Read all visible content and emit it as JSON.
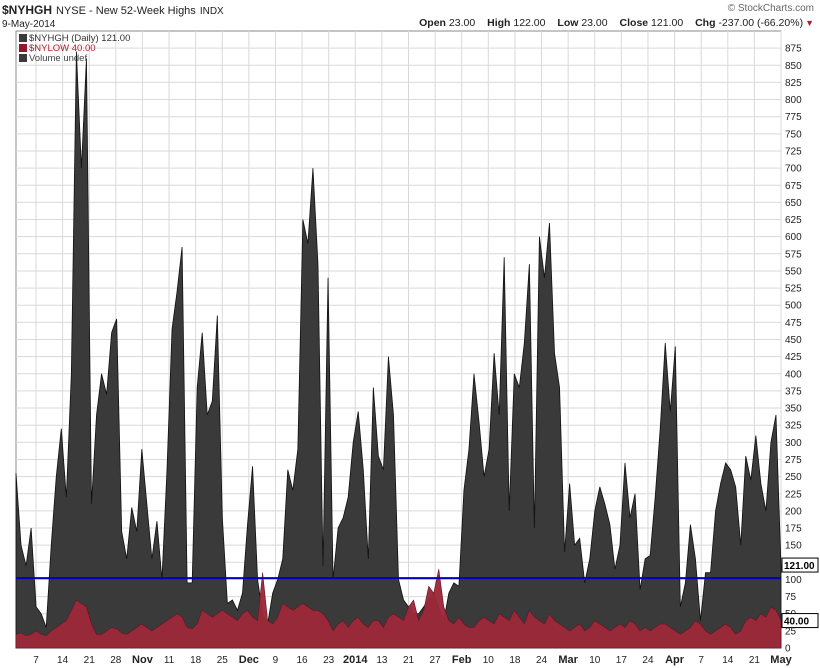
{
  "header": {
    "symbol": "$NYHGH",
    "description": "NYSE - New 52-Week Highs",
    "exchange": "INDX",
    "date": "9-May-2014",
    "brand": "© StockCharts.com",
    "open_label": "Open",
    "open": "23.00",
    "high_label": "High",
    "high": "122.00",
    "low_label": "Low",
    "low": "23.00",
    "close_label": "Close",
    "close": "121.00",
    "chg_label": "Chg",
    "chg": "-237.00 (-66.20%)"
  },
  "legend": [
    {
      "text": "$NYHGH (Daily) 121.00",
      "color": "#333333"
    },
    {
      "text": "$NYLOW 40.00",
      "color": "#b0202a"
    },
    {
      "text": "Volume undef",
      "color": "#444444"
    }
  ],
  "colors": {
    "highs": "#3a3a3a",
    "lows": "#8c1a2c",
    "lows_over": "#e0707a",
    "ref_line": "#0000bb",
    "grid": "#d9d9d9"
  },
  "chart_data": {
    "type": "area",
    "ylim": [
      0,
      900
    ],
    "yticks": [
      0,
      25,
      50,
      75,
      100,
      125,
      150,
      175,
      200,
      225,
      250,
      275,
      300,
      325,
      350,
      375,
      400,
      425,
      450,
      475,
      500,
      525,
      550,
      575,
      600,
      625,
      650,
      675,
      700,
      725,
      750,
      775,
      800,
      825,
      850,
      875
    ],
    "xlabels": [
      "7",
      "14",
      "21",
      "28",
      "Nov",
      "11",
      "18",
      "25",
      "Dec",
      "9",
      "16",
      "23",
      "2014",
      "13",
      "21",
      "27",
      "Feb",
      "10",
      "18",
      "24",
      "Mar",
      "10",
      "17",
      "24",
      "Apr",
      "7",
      "14",
      "21",
      "May"
    ],
    "bold_xlabels": [
      "Nov",
      "Dec",
      "2014",
      "Feb",
      "Mar",
      "Apr",
      "May"
    ],
    "reference_line": {
      "value": 102
    },
    "last_value_tags": [
      {
        "value": 121,
        "label": "121.00"
      },
      {
        "value": 40,
        "label": "40.00"
      }
    ],
    "series": [
      {
        "name": "$NYHGH",
        "values": [
          255,
          150,
          120,
          175,
          60,
          50,
          30,
          150,
          250,
          320,
          220,
          400,
          870,
          700,
          860,
          210,
          340,
          400,
          370,
          460,
          480,
          170,
          130,
          205,
          170,
          290,
          210,
          130,
          185,
          100,
          260,
          465,
          520,
          585,
          95,
          95,
          380,
          460,
          340,
          360,
          485,
          190,
          65,
          70,
          55,
          80,
          180,
          265,
          100,
          50,
          35,
          80,
          100,
          130,
          260,
          230,
          290,
          625,
          590,
          700,
          560,
          120,
          540,
          100,
          175,
          190,
          220,
          300,
          345,
          260,
          130,
          380,
          280,
          260,
          425,
          340,
          100,
          70,
          60,
          50,
          50,
          60,
          70,
          80,
          60,
          40,
          80,
          95,
          90,
          230,
          290,
          400,
          330,
          250,
          290,
          430,
          340,
          570,
          200,
          400,
          380,
          445,
          560,
          175,
          600,
          540,
          620,
          430,
          380,
          140,
          240,
          150,
          160,
          95,
          130,
          200,
          235,
          210,
          180,
          115,
          150,
          270,
          190,
          225,
          85,
          130,
          135,
          220,
          320,
          445,
          345,
          440,
          60,
          95,
          180,
          130,
          40,
          110,
          110,
          200,
          240,
          270,
          260,
          235,
          150,
          280,
          245,
          310,
          240,
          200,
          300,
          340,
          120
        ],
        "fill": "#3a3a3a"
      },
      {
        "name": "$NYLOW",
        "values": [
          20,
          22,
          18,
          20,
          25,
          20,
          18,
          25,
          30,
          35,
          40,
          55,
          70,
          65,
          60,
          35,
          20,
          20,
          25,
          30,
          28,
          22,
          20,
          25,
          30,
          35,
          30,
          25,
          30,
          35,
          40,
          45,
          50,
          45,
          30,
          28,
          35,
          55,
          50,
          45,
          50,
          55,
          50,
          45,
          40,
          50,
          55,
          45,
          40,
          110,
          40,
          35,
          45,
          65,
          60,
          55,
          60,
          65,
          60,
          55,
          55,
          50,
          40,
          25,
          35,
          40,
          30,
          40,
          45,
          35,
          30,
          40,
          40,
          30,
          45,
          50,
          45,
          40,
          60,
          70,
          40,
          55,
          90,
          80,
          115,
          60,
          40,
          35,
          45,
          35,
          30,
          30,
          40,
          45,
          40,
          35,
          50,
          45,
          40,
          55,
          45,
          35,
          55,
          45,
          40,
          35,
          50,
          40,
          35,
          30,
          25,
          30,
          35,
          25,
          30,
          40,
          35,
          30,
          25,
          30,
          35,
          30,
          40,
          35,
          25,
          30,
          25,
          30,
          35,
          35,
          30,
          25,
          20,
          25,
          30,
          40,
          35,
          25,
          20,
          25,
          30,
          35,
          30,
          20,
          25,
          40,
          45,
          40,
          50,
          45,
          60,
          55,
          40
        ],
        "fill": "#8c1a2c"
      }
    ]
  }
}
